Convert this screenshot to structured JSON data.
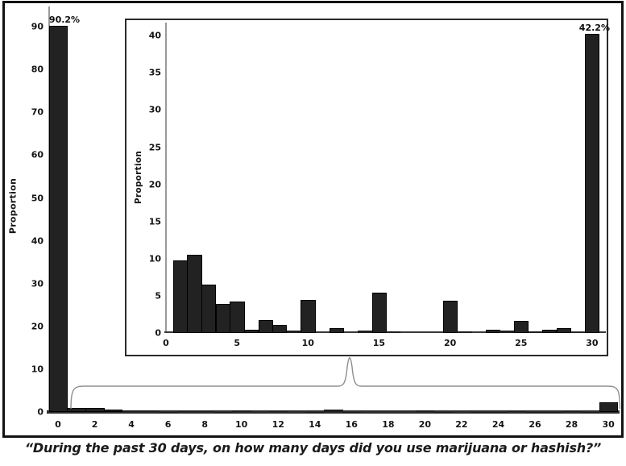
{
  "figure": {
    "caption": "“During the past 30 days, on how many days did you use marijuana or hashish?”"
  },
  "chart_data": [
    {
      "id": "main",
      "type": "bar",
      "title": "",
      "xlabel": "",
      "ylabel": "Proportion",
      "x": [
        0,
        1,
        2,
        3,
        4,
        5,
        6,
        7,
        8,
        9,
        10,
        11,
        12,
        13,
        14,
        15,
        16,
        17,
        18,
        19,
        20,
        21,
        22,
        23,
        24,
        25,
        26,
        27,
        28,
        29,
        30
      ],
      "values": [
        90.2,
        1.0,
        0.9,
        0.6,
        0.4,
        0.4,
        0.05,
        0.25,
        0.2,
        0.05,
        0.4,
        0,
        0.1,
        0,
        0.07,
        0.5,
        0.04,
        0,
        0,
        0,
        0.4,
        0.04,
        0,
        0.06,
        0.05,
        0.2,
        0.04,
        0.06,
        0.1,
        0.04,
        2.3
      ],
      "xticks": [
        0,
        2,
        4,
        6,
        8,
        10,
        12,
        14,
        16,
        18,
        20,
        22,
        24,
        26,
        28,
        30
      ],
      "yticks": [
        0,
        10,
        20,
        30,
        40,
        50,
        60,
        70,
        80,
        90
      ],
      "ylim": [
        0,
        95
      ],
      "grid": false,
      "legend": null,
      "annotations": [
        {
          "x": 0,
          "text": "90.2%"
        }
      ]
    },
    {
      "id": "inset",
      "type": "bar",
      "title": "",
      "xlabel": "",
      "ylabel": "Proportion",
      "x": [
        1,
        2,
        3,
        4,
        5,
        6,
        7,
        8,
        9,
        10,
        11,
        12,
        13,
        14,
        15,
        16,
        17,
        18,
        19,
        20,
        21,
        22,
        23,
        24,
        25,
        26,
        27,
        28,
        29,
        30
      ],
      "values": [
        9.8,
        10.5,
        6.5,
        3.9,
        4.2,
        0.4,
        1.7,
        1.1,
        0.3,
        4.4,
        0,
        0.7,
        0,
        0.3,
        5.4,
        0.2,
        0,
        0,
        0,
        4.3,
        0.2,
        0,
        0.4,
        0.3,
        1.6,
        0.2,
        0.4,
        0.7,
        0.1,
        42.2
      ],
      "xticks": [
        0,
        5,
        10,
        15,
        20,
        25,
        30
      ],
      "yticks": [
        0,
        5,
        10,
        15,
        20,
        25,
        30,
        35,
        40
      ],
      "ylim": [
        0,
        42.5
      ],
      "grid": false,
      "legend": null,
      "annotations": [
        {
          "x": 30,
          "text": "42.2%"
        }
      ]
    }
  ]
}
